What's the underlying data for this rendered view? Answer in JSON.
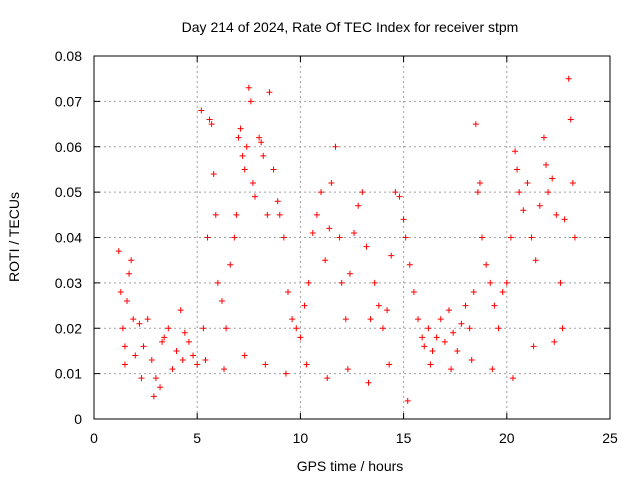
{
  "chart_data": {
    "type": "scatter",
    "title": "Day 214 of 2024, Rate Of TEC Index for receiver stpm",
    "xlabel": "GPS time / hours",
    "ylabel": "ROTI / TECUs",
    "xlim": [
      0,
      25
    ],
    "ylim": [
      0,
      0.08
    ],
    "x_ticks": [
      0,
      5,
      10,
      15,
      20,
      25
    ],
    "x_tick_labels": [
      "0",
      "5",
      "10",
      "15",
      "20",
      "25"
    ],
    "y_ticks": [
      0,
      0.01,
      0.02,
      0.03,
      0.04,
      0.05,
      0.06,
      0.07,
      0.08
    ],
    "y_tick_labels": [
      "0",
      "0.01",
      "0.02",
      "0.03",
      "0.04",
      "0.05",
      "0.06",
      "0.07",
      "0.08"
    ],
    "grid": true,
    "marker": "plus",
    "color": "#ff0000",
    "series": [
      {
        "points": [
          [
            1.2,
            0.037
          ],
          [
            1.3,
            0.028
          ],
          [
            1.4,
            0.02
          ],
          [
            1.5,
            0.016
          ],
          [
            1.6,
            0.026
          ],
          [
            1.7,
            0.032
          ],
          [
            1.8,
            0.035
          ],
          [
            1.9,
            0.022
          ],
          [
            2.0,
            0.014
          ],
          [
            2.2,
            0.021
          ],
          [
            2.4,
            0.016
          ],
          [
            2.6,
            0.022
          ],
          [
            2.8,
            0.013
          ],
          [
            2.9,
            0.005
          ],
          [
            3.0,
            0.009
          ],
          [
            3.2,
            0.007
          ],
          [
            3.4,
            0.018
          ],
          [
            3.6,
            0.02
          ],
          [
            3.8,
            0.011
          ],
          [
            4.0,
            0.015
          ],
          [
            4.2,
            0.024
          ],
          [
            4.4,
            0.019
          ],
          [
            4.6,
            0.017
          ],
          [
            4.8,
            0.014
          ],
          [
            5.0,
            0.012
          ],
          [
            5.2,
            0.068
          ],
          [
            5.3,
            0.02
          ],
          [
            5.5,
            0.04
          ],
          [
            5.6,
            0.066
          ],
          [
            5.7,
            0.065
          ],
          [
            5.8,
            0.054
          ],
          [
            5.9,
            0.045
          ],
          [
            6.0,
            0.03
          ],
          [
            6.2,
            0.026
          ],
          [
            6.4,
            0.02
          ],
          [
            6.6,
            0.034
          ],
          [
            6.8,
            0.04
          ],
          [
            6.9,
            0.045
          ],
          [
            7.0,
            0.062
          ],
          [
            7.1,
            0.064
          ],
          [
            7.2,
            0.058
          ],
          [
            7.3,
            0.055
          ],
          [
            7.4,
            0.06
          ],
          [
            7.5,
            0.073
          ],
          [
            7.6,
            0.07
          ],
          [
            7.7,
            0.052
          ],
          [
            7.8,
            0.049
          ],
          [
            8.0,
            0.062
          ],
          [
            8.1,
            0.061
          ],
          [
            8.2,
            0.058
          ],
          [
            8.4,
            0.045
          ],
          [
            8.5,
            0.072
          ],
          [
            8.7,
            0.055
          ],
          [
            8.9,
            0.048
          ],
          [
            9.0,
            0.045
          ],
          [
            9.2,
            0.04
          ],
          [
            9.4,
            0.028
          ],
          [
            9.6,
            0.022
          ],
          [
            9.8,
            0.02
          ],
          [
            10.0,
            0.018
          ],
          [
            10.2,
            0.025
          ],
          [
            10.4,
            0.03
          ],
          [
            10.6,
            0.041
          ],
          [
            10.8,
            0.045
          ],
          [
            11.0,
            0.05
          ],
          [
            11.2,
            0.035
          ],
          [
            11.4,
            0.042
          ],
          [
            11.5,
            0.052
          ],
          [
            11.7,
            0.06
          ],
          [
            11.9,
            0.04
          ],
          [
            12.0,
            0.03
          ],
          [
            12.2,
            0.022
          ],
          [
            12.4,
            0.032
          ],
          [
            12.6,
            0.041
          ],
          [
            12.8,
            0.047
          ],
          [
            13.0,
            0.05
          ],
          [
            13.2,
            0.038
          ],
          [
            13.4,
            0.022
          ],
          [
            13.6,
            0.03
          ],
          [
            13.8,
            0.025
          ],
          [
            14.0,
            0.02
          ],
          [
            14.2,
            0.024
          ],
          [
            14.4,
            0.036
          ],
          [
            14.6,
            0.05
          ],
          [
            14.8,
            0.049
          ],
          [
            15.0,
            0.044
          ],
          [
            15.1,
            0.04
          ],
          [
            15.3,
            0.034
          ],
          [
            15.5,
            0.028
          ],
          [
            15.7,
            0.022
          ],
          [
            15.9,
            0.018
          ],
          [
            16.0,
            0.016
          ],
          [
            16.2,
            0.02
          ],
          [
            16.4,
            0.015
          ],
          [
            16.6,
            0.018
          ],
          [
            16.8,
            0.022
          ],
          [
            17.0,
            0.017
          ],
          [
            17.2,
            0.024
          ],
          [
            17.4,
            0.019
          ],
          [
            17.6,
            0.015
          ],
          [
            17.8,
            0.021
          ],
          [
            18.0,
            0.025
          ],
          [
            18.2,
            0.02
          ],
          [
            18.4,
            0.028
          ],
          [
            18.5,
            0.065
          ],
          [
            18.6,
            0.05
          ],
          [
            18.7,
            0.052
          ],
          [
            18.8,
            0.04
          ],
          [
            19.0,
            0.034
          ],
          [
            19.2,
            0.03
          ],
          [
            19.4,
            0.025
          ],
          [
            19.6,
            0.02
          ],
          [
            19.8,
            0.028
          ],
          [
            20.0,
            0.03
          ],
          [
            20.2,
            0.04
          ],
          [
            20.4,
            0.059
          ],
          [
            20.5,
            0.055
          ],
          [
            20.6,
            0.05
          ],
          [
            20.8,
            0.046
          ],
          [
            21.0,
            0.052
          ],
          [
            21.2,
            0.04
          ],
          [
            21.4,
            0.035
          ],
          [
            21.6,
            0.047
          ],
          [
            21.8,
            0.062
          ],
          [
            21.9,
            0.056
          ],
          [
            22.0,
            0.05
          ],
          [
            22.2,
            0.053
          ],
          [
            22.4,
            0.045
          ],
          [
            22.6,
            0.03
          ],
          [
            22.8,
            0.044
          ],
          [
            23.0,
            0.075
          ],
          [
            23.1,
            0.066
          ],
          [
            23.2,
            0.052
          ],
          [
            23.3,
            0.04
          ],
          [
            1.5,
            0.012
          ],
          [
            2.3,
            0.009
          ],
          [
            3.3,
            0.017
          ],
          [
            4.3,
            0.013
          ],
          [
            5.4,
            0.013
          ],
          [
            6.3,
            0.011
          ],
          [
            7.3,
            0.014
          ],
          [
            8.3,
            0.012
          ],
          [
            9.3,
            0.01
          ],
          [
            10.3,
            0.012
          ],
          [
            11.3,
            0.009
          ],
          [
            12.3,
            0.011
          ],
          [
            13.3,
            0.008
          ],
          [
            14.3,
            0.012
          ],
          [
            15.2,
            0.004
          ],
          [
            16.3,
            0.012
          ],
          [
            17.3,
            0.011
          ],
          [
            18.3,
            0.013
          ],
          [
            19.3,
            0.011
          ],
          [
            20.3,
            0.009
          ],
          [
            21.3,
            0.016
          ],
          [
            22.3,
            0.017
          ],
          [
            22.7,
            0.02
          ]
        ]
      }
    ]
  }
}
